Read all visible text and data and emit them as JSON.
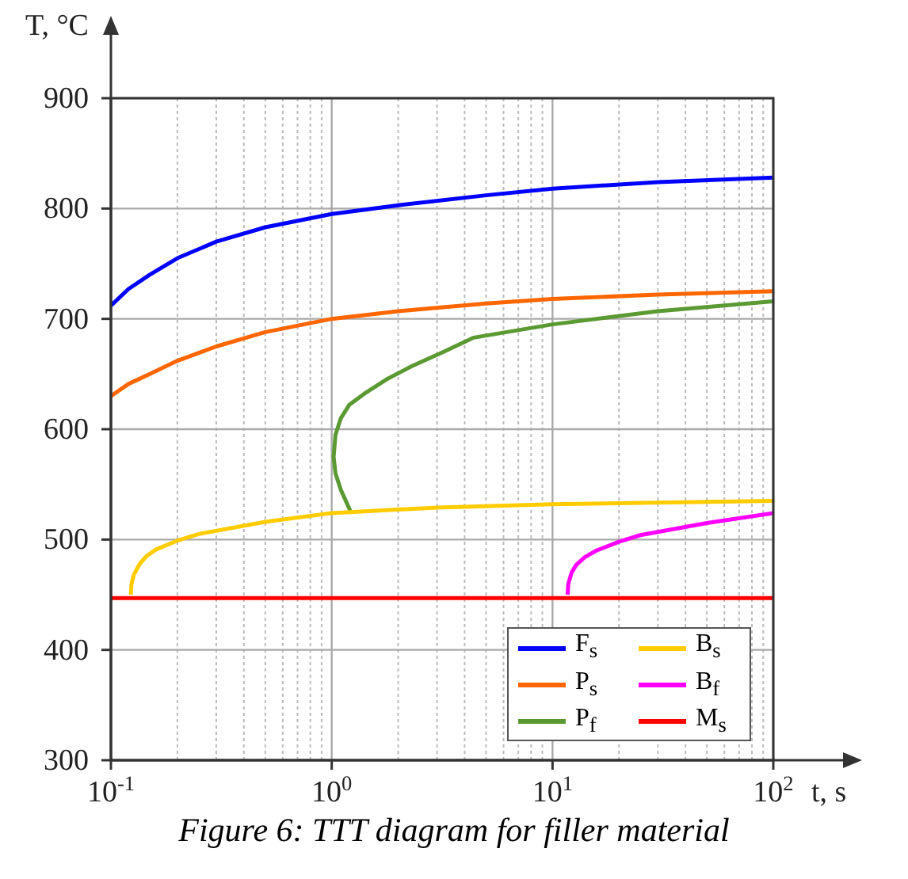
{
  "chart_data": {
    "type": "line",
    "xlabel": "t, s",
    "ylabel": "T, °C",
    "annotations": [
      "Figure 6: TTT diagram for filler material"
    ],
    "log": "x",
    "grid": true,
    "legend": "bottom right",
    "xlim": [
      0.1,
      100
    ],
    "xticks": [
      {
        "value": 0.1,
        "label": "10$^{-1}$"
      },
      {
        "value": 1,
        "label": "10$^{0}$"
      },
      {
        "value": 10,
        "label": "10$^{1}$"
      },
      {
        "value": 100,
        "label": "10$^{2}$"
      }
    ],
    "ylim": [
      300,
      900
    ],
    "yticks": [
      300,
      400,
      500,
      600,
      700,
      800,
      900
    ],
    "series": [
      {
        "name": "F$_{s}$",
        "color": "#0000ff",
        "x": [
          0.1,
          0.12,
          0.15,
          0.2,
          0.3,
          0.5,
          1,
          2,
          5,
          10,
          30,
          100
        ],
        "values": [
          712,
          727,
          740,
          755,
          770,
          783,
          795,
          803,
          812,
          818,
          824,
          828
        ]
      },
      {
        "name": "P$_{s}$",
        "color": "#ff6600",
        "x": [
          0.1,
          0.12,
          0.15,
          0.2,
          0.3,
          0.5,
          1,
          2,
          5,
          10,
          30,
          100
        ],
        "values": [
          630,
          641,
          650,
          662,
          675,
          688,
          700,
          707,
          714,
          718,
          722,
          725
        ]
      },
      {
        "name": "P$_{f}$",
        "color": "#5b9a32",
        "x": [
          1.22,
          1.1,
          1.04,
          1.02,
          1.04,
          1.1,
          1.2,
          1.4,
          1.8,
          2.3,
          3.2,
          4.4,
          10,
          30,
          100
        ],
        "values": [
          525,
          545,
          560,
          575,
          595,
          610,
          622,
          632,
          646,
          657,
          670,
          683,
          695,
          707,
          716
        ]
      },
      {
        "name": "B$_{s}$",
        "color": "#ffcc00",
        "x": [
          0.123,
          0.124,
          0.127,
          0.135,
          0.145,
          0.16,
          0.2,
          0.25,
          0.5,
          1,
          3,
          10,
          100
        ],
        "values": [
          450,
          460,
          468,
          478,
          485,
          491,
          499,
          505,
          516,
          524,
          529,
          532,
          535
        ]
      },
      {
        "name": "B$_{f}$",
        "color": "#ff00ff",
        "x": [
          11.7,
          11.8,
          12.2,
          12.8,
          14,
          15.8,
          20,
          25,
          50,
          100
        ],
        "values": [
          450,
          460,
          470,
          477,
          484,
          490,
          498,
          504,
          515,
          524
        ]
      },
      {
        "name": "M$_{s}$",
        "color": "#ff0000",
        "x": [
          0.1,
          100
        ],
        "values": [
          447,
          447
        ]
      }
    ]
  }
}
